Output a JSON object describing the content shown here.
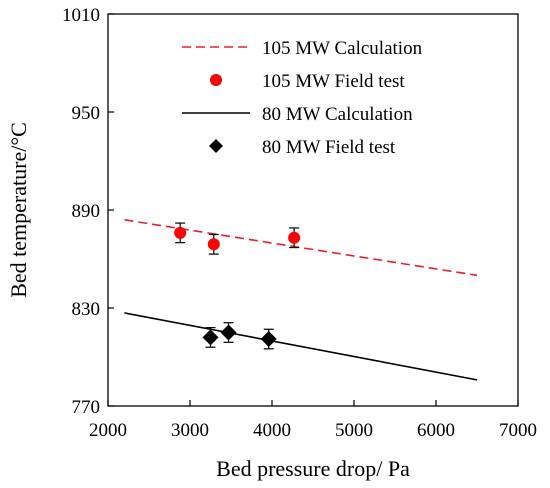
{
  "chart_data": {
    "type": "line+scatter",
    "xlabel": "Bed pressure drop/ Pa",
    "ylabel": "Bed temperature/°C",
    "xlim": [
      2000,
      7000
    ],
    "ylim": [
      770,
      1010
    ],
    "xticks": [
      2000,
      3000,
      4000,
      5000,
      6000,
      7000
    ],
    "yticks": [
      770,
      830,
      890,
      950,
      1010
    ],
    "xtick_labels": [
      "2000",
      "3000",
      "4000",
      "5000",
      "6000",
      "7000"
    ],
    "ytick_labels": [
      "770",
      "830",
      "890",
      "950",
      "1010"
    ],
    "grid": false,
    "legend_position": "top-right",
    "series": [
      {
        "name": "105 MW Calculation",
        "kind": "line",
        "style": "dashed",
        "color": "#e8202a",
        "x": [
          2200,
          6500
        ],
        "y": [
          884,
          850
        ]
      },
      {
        "name": "105 MW Field test",
        "kind": "scatter",
        "marker": "circle",
        "color": "#ff0000",
        "x": [
          2880,
          3290,
          4270
        ],
        "y": [
          876,
          869,
          873
        ],
        "error": [
          6,
          6,
          6
        ]
      },
      {
        "name": "80 MW Calculation",
        "kind": "line",
        "style": "solid",
        "color": "#000000",
        "x": [
          2200,
          6500
        ],
        "y": [
          827,
          786
        ]
      },
      {
        "name": "80 MW Field test",
        "kind": "scatter",
        "marker": "diamond",
        "color": "#000000",
        "x": [
          3250,
          3470,
          3960
        ],
        "y": [
          812,
          815,
          811
        ],
        "error": [
          6,
          6,
          6
        ]
      }
    ]
  }
}
